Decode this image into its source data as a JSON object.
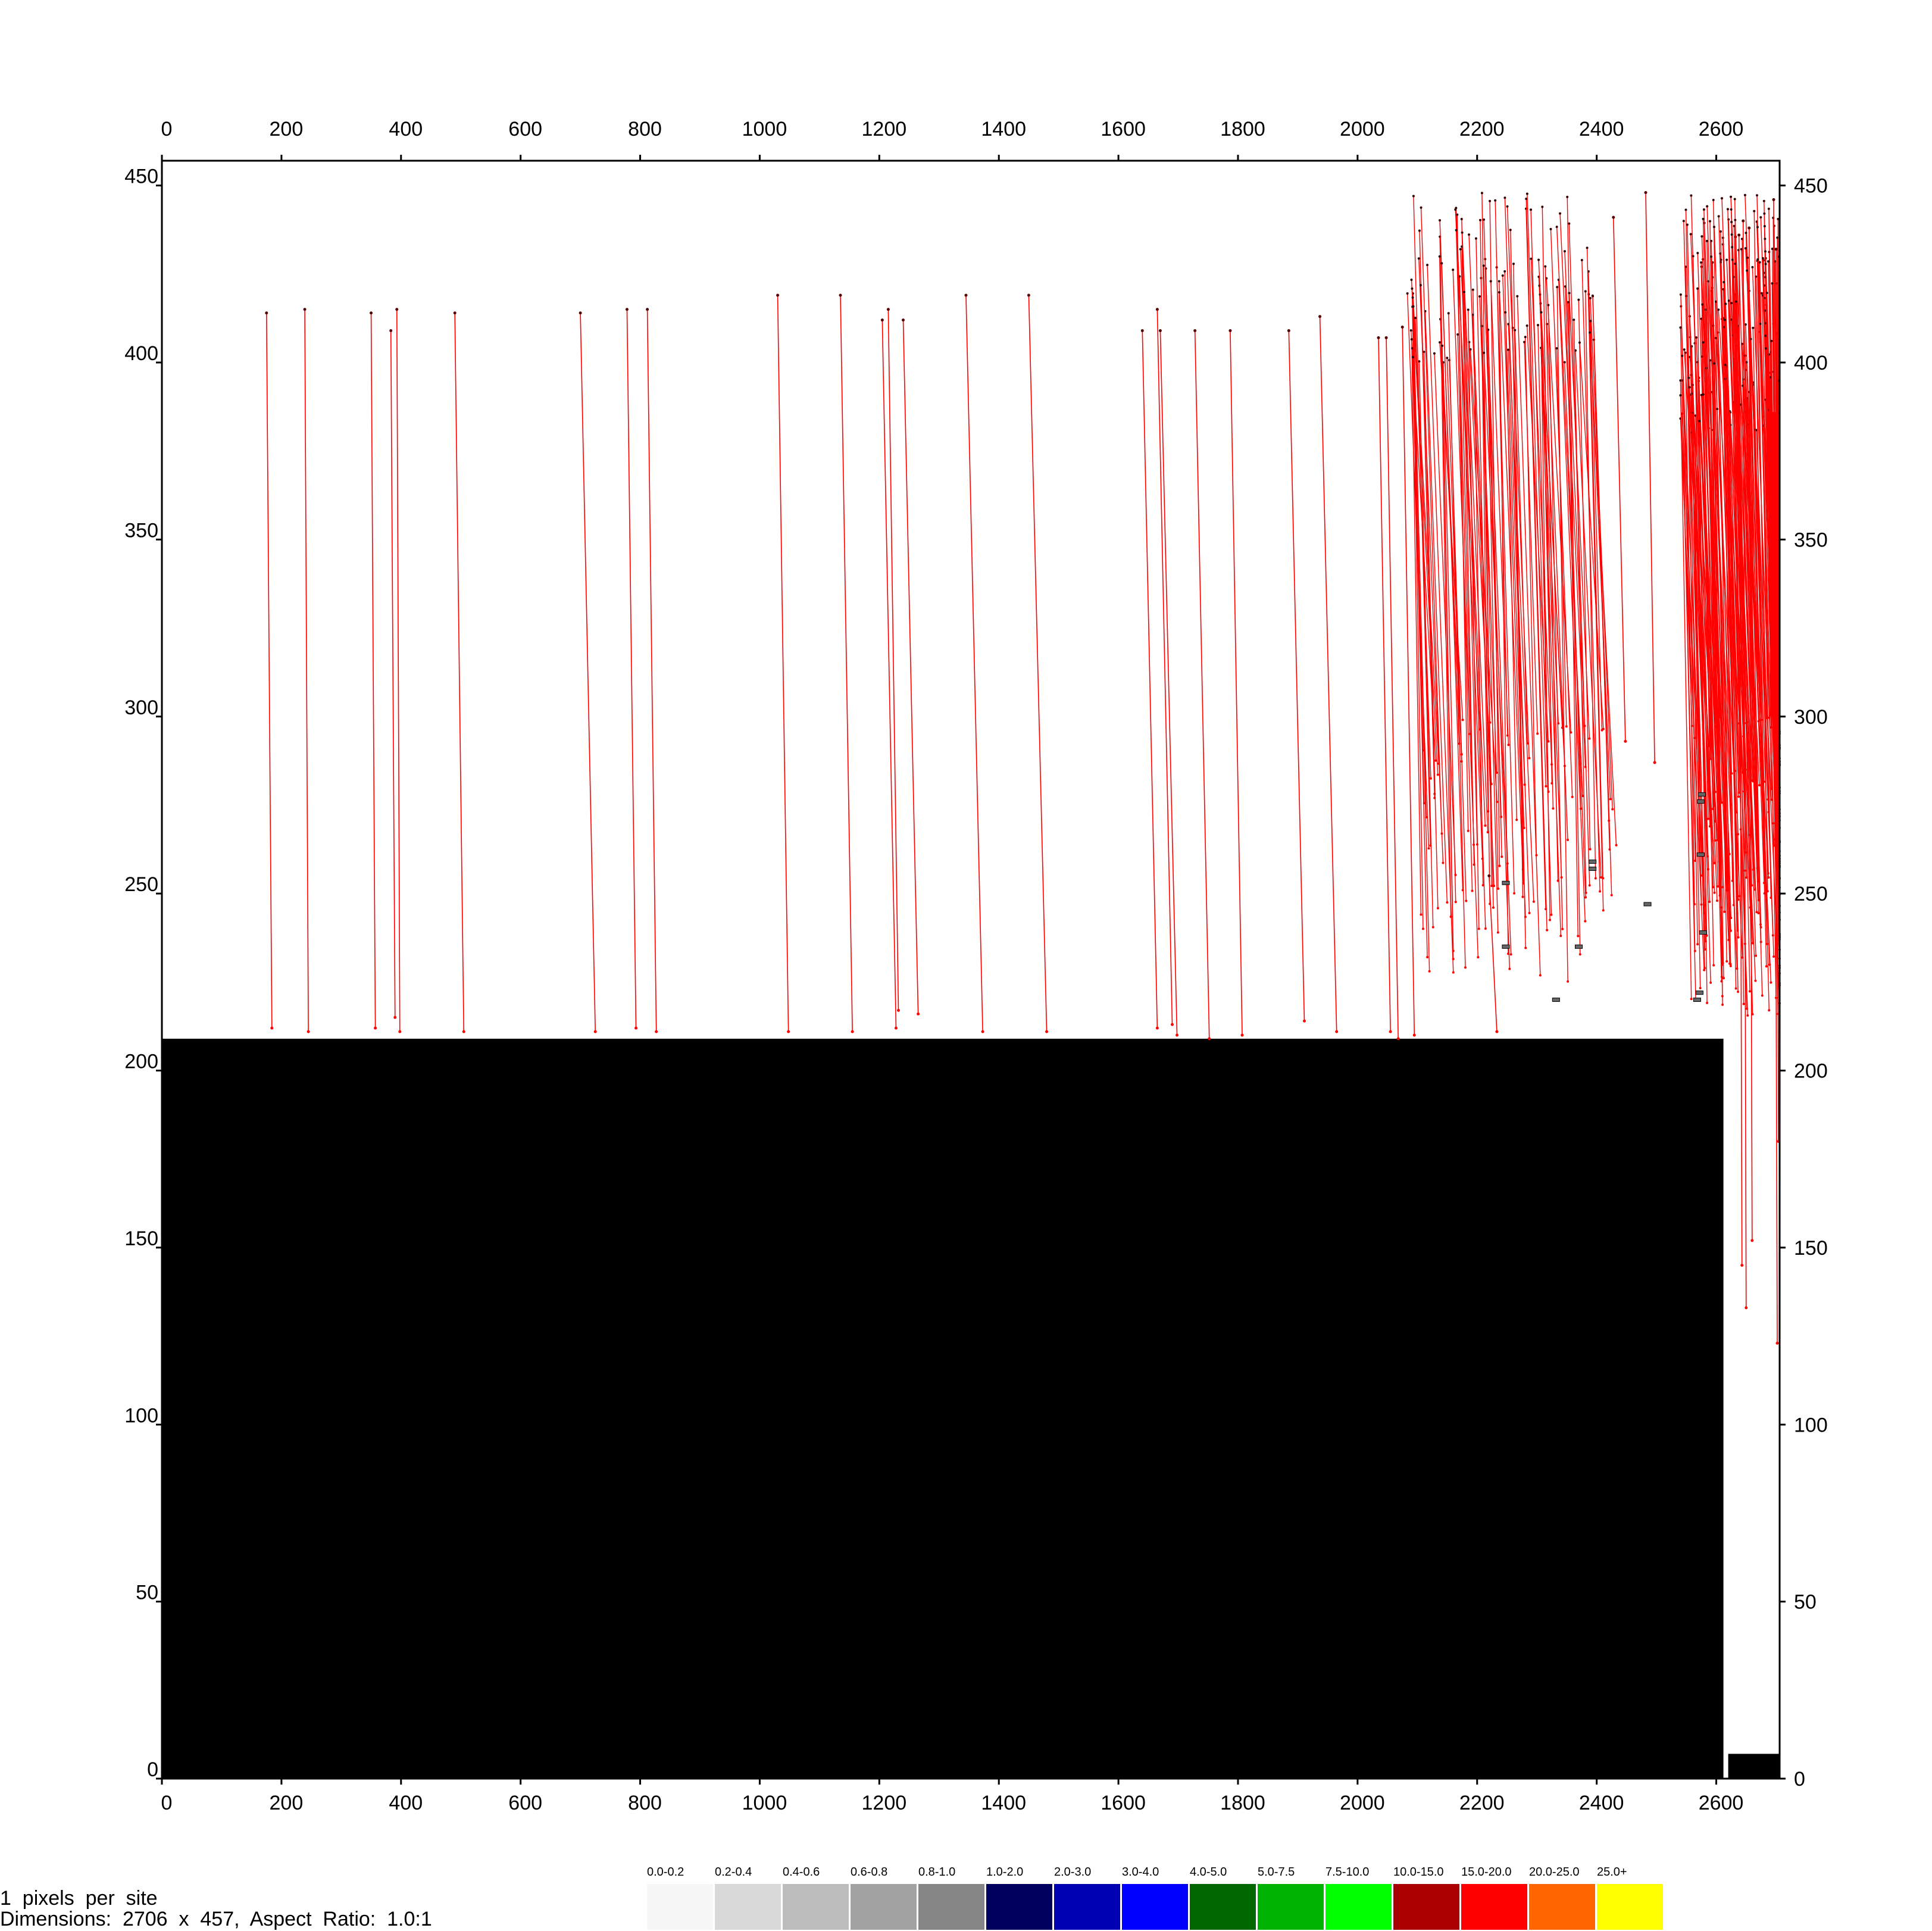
{
  "chart_data": {
    "type": "scatter",
    "title": "",
    "xlabel": "",
    "ylabel": "",
    "xlim": [
      0,
      2706
    ],
    "ylim": [
      0,
      457
    ],
    "x_ticks": [
      0,
      200,
      400,
      600,
      800,
      1000,
      1200,
      1400,
      1600,
      1800,
      2000,
      2200,
      2400,
      2600
    ],
    "y_ticks": [
      0,
      50,
      100,
      150,
      200,
      250,
      300,
      350,
      400,
      450
    ],
    "grid": false,
    "line_color": "#ff0000",
    "region_color": "#000000",
    "filled_regions": [
      {
        "x": [
          0,
          2612
        ],
        "y": [
          0,
          209
        ]
      },
      {
        "x": [
          2620,
          2710
        ],
        "y": [
          0,
          7
        ]
      }
    ],
    "segments": [
      {
        "x": [
          175,
          184
        ],
        "y": [
          414,
          212
        ]
      },
      {
        "x": [
          239,
          245
        ],
        "y": [
          415,
          211
        ]
      },
      {
        "x": [
          350,
          357
        ],
        "y": [
          414,
          212
        ]
      },
      {
        "x": [
          383,
          390
        ],
        "y": [
          409,
          215
        ]
      },
      {
        "x": [
          393,
          398
        ],
        "y": [
          415,
          211
        ]
      },
      {
        "x": [
          490,
          505
        ],
        "y": [
          414,
          211
        ]
      },
      {
        "x": [
          700,
          725
        ],
        "y": [
          414,
          211
        ]
      },
      {
        "x": [
          778,
          793
        ],
        "y": [
          415,
          212
        ]
      },
      {
        "x": [
          812,
          827
        ],
        "y": [
          415,
          211
        ]
      },
      {
        "x": [
          1030,
          1048
        ],
        "y": [
          419,
          211
        ]
      },
      {
        "x": [
          1135,
          1155
        ],
        "y": [
          419,
          211
        ]
      },
      {
        "x": [
          1205,
          1228
        ],
        "y": [
          412,
          212
        ]
      },
      {
        "x": [
          1215,
          1232
        ],
        "y": [
          415,
          217
        ]
      },
      {
        "x": [
          1240,
          1265
        ],
        "y": [
          412,
          216
        ]
      },
      {
        "x": [
          1345,
          1373
        ],
        "y": [
          419,
          211
        ]
      },
      {
        "x": [
          1450,
          1480
        ],
        "y": [
          419,
          211
        ]
      },
      {
        "x": [
          1640,
          1665
        ],
        "y": [
          409,
          212
        ]
      },
      {
        "x": [
          1665,
          1690
        ],
        "y": [
          415,
          213
        ]
      },
      {
        "x": [
          1670,
          1698
        ],
        "y": [
          409,
          210
        ]
      },
      {
        "x": [
          1728,
          1752
        ],
        "y": [
          409,
          209
        ]
      },
      {
        "x": [
          1787,
          1807
        ],
        "y": [
          409,
          210
        ]
      },
      {
        "x": [
          1885,
          1911
        ],
        "y": [
          409,
          214
        ]
      },
      {
        "x": [
          1937,
          1965
        ],
        "y": [
          413,
          211
        ]
      },
      {
        "x": [
          2035,
          2055
        ],
        "y": [
          407,
          211
        ]
      },
      {
        "x": [
          2048,
          2068
        ],
        "y": [
          407,
          209
        ]
      },
      {
        "x": [
          2075,
          2095
        ],
        "y": [
          410,
          210
        ]
      },
      {
        "x": [
          2220,
          2233
        ],
        "y": [
          255,
          211
        ]
      },
      {
        "x": [
          2428,
          2448
        ],
        "y": [
          441,
          293
        ]
      },
      {
        "x": [
          2482,
          2497
        ],
        "y": [
          448,
          287
        ]
      }
    ],
    "dense_regions": [
      {
        "x": [
          2080,
          2400
        ],
        "y_top": [
          400,
          448
        ],
        "y_bottom": [
          225,
          300
        ],
        "segments": 130,
        "seed": 17
      },
      {
        "x": [
          2540,
          2706
        ],
        "y_top": [
          380,
          448
        ],
        "y_bottom": [
          215,
          300
        ],
        "segments": 220,
        "seed": 53
      }
    ],
    "tail_segments": [
      {
        "x": [
          2645,
          2650
        ],
        "y": [
          440,
          133
        ]
      },
      {
        "x": [
          2655,
          2660
        ],
        "y": [
          438,
          152
        ]
      },
      {
        "x": [
          2638,
          2643
        ],
        "y": [
          436,
          145
        ]
      },
      {
        "x": [
          2696,
          2702
        ],
        "y": [
          446,
          123
        ]
      },
      {
        "x": [
          2700,
          2704
        ],
        "y": [
          432,
          180
        ]
      }
    ],
    "solid_fill": {
      "x": [
        2690,
        2706
      ],
      "y": [
        300,
        386
      ]
    },
    "small_markers": [
      {
        "x": 2248,
        "y": 253
      },
      {
        "x": 2248,
        "y": 235
      },
      {
        "x": 2332,
        "y": 220
      },
      {
        "x": 2370,
        "y": 235
      },
      {
        "x": 2393,
        "y": 259
      },
      {
        "x": 2393,
        "y": 257
      },
      {
        "x": 2485,
        "y": 247
      },
      {
        "x": 2568,
        "y": 220
      },
      {
        "x": 2572,
        "y": 222
      },
      {
        "x": 2574,
        "y": 261
      },
      {
        "x": 2574,
        "y": 276
      },
      {
        "x": 2576,
        "y": 278
      },
      {
        "x": 2578,
        "y": 239
      }
    ]
  },
  "legend": {
    "items": [
      {
        "label": "0.0-0.2",
        "color": "#f7f7f7"
      },
      {
        "label": "0.2-0.4",
        "color": "#d9d9d9"
      },
      {
        "label": "0.4-0.6",
        "color": "#bdbdbd"
      },
      {
        "label": "0.6-0.8",
        "color": "#a3a3a3"
      },
      {
        "label": "0.8-1.0",
        "color": "#868686"
      },
      {
        "label": "1.0-2.0",
        "color": "#00005f"
      },
      {
        "label": "2.0-3.0",
        "color": "#0000b3"
      },
      {
        "label": "3.0-4.0",
        "color": "#0000ff"
      },
      {
        "label": "4.0-5.0",
        "color": "#006600"
      },
      {
        "label": "5.0-7.5",
        "color": "#00b300"
      },
      {
        "label": "7.5-10.0",
        "color": "#00ff00"
      },
      {
        "label": "10.0-15.0",
        "color": "#aa0000"
      },
      {
        "label": "15.0-20.0",
        "color": "#ff0000"
      },
      {
        "label": "20.0-25.0",
        "color": "#ff6600"
      },
      {
        "label": "25.0+",
        "color": "#ffff00"
      }
    ]
  },
  "footer": {
    "line1": "1  pixels  per  site",
    "line2": "Dimensions:  2706  x  457,  Aspect  Ratio:  1.0:1"
  }
}
